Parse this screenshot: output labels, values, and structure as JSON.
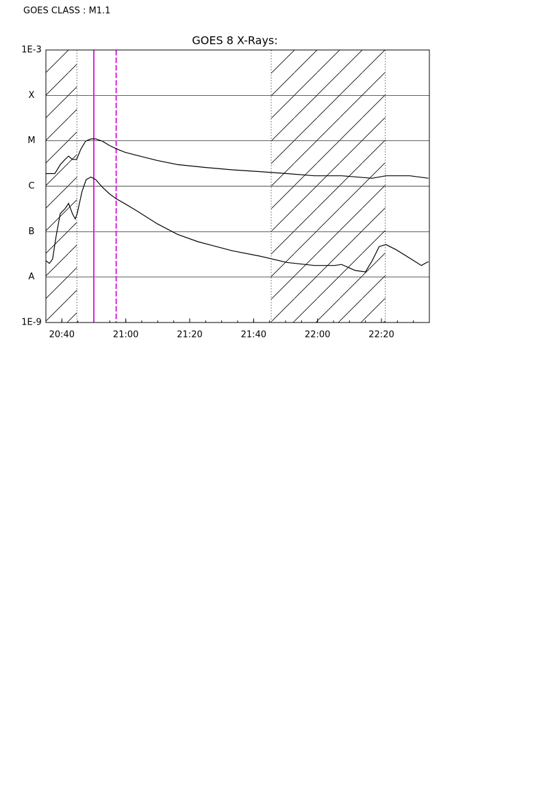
{
  "header": "GOES CLASS : M1.1",
  "chart_data": {
    "type": "line",
    "title": "GOES 8 X-Rays:",
    "log_y": true,
    "grid": true,
    "xlim": [
      1235,
      1355
    ],
    "xticks": [
      {
        "value": 1240,
        "label": "20:40"
      },
      {
        "value": 1260,
        "label": "21:00"
      },
      {
        "value": 1280,
        "label": "21:20"
      },
      {
        "value": 1300,
        "label": "21:40"
      },
      {
        "value": 1320,
        "label": "22:00"
      },
      {
        "value": 1340,
        "label": "22:20"
      }
    ],
    "ylim": [
      1e-09,
      0.001
    ],
    "yticks": [
      {
        "value": 1e-09,
        "label": "1E-9"
      },
      {
        "value": 1e-08,
        "label": "A"
      },
      {
        "value": 1e-07,
        "label": "B"
      },
      {
        "value": 1e-06,
        "label": "C"
      },
      {
        "value": 1e-05,
        "label": "M"
      },
      {
        "value": 0.0001,
        "label": "X"
      },
      {
        "value": 0.001,
        "label": "1E-3"
      }
    ],
    "hatch_regions": [
      [
        1235,
        1244.7
      ],
      [
        1305.5,
        1341.2
      ]
    ],
    "markers": [
      {
        "x": 1250,
        "color": "#e020e0",
        "style": "solid"
      },
      {
        "x": 1257,
        "color": "#e020e0",
        "style": "dashed"
      }
    ],
    "series": [
      {
        "color": "#000000",
        "x": [
          1235,
          1237.8,
          1239.5,
          1241,
          1242.1,
          1243.3,
          1244.6,
          1245.9,
          1247.4,
          1249.1,
          1250.6,
          1252.7,
          1254.9,
          1257,
          1259.8,
          1263.4,
          1269.8,
          1276.2,
          1284.8,
          1293.3,
          1301.9,
          1310.4,
          1319,
          1327.5,
          1337.1,
          1341.4,
          1348.9,
          1354.7
        ],
        "values": [
          1.9e-06,
          1.9e-06,
          3e-06,
          3.9e-06,
          4.6e-06,
          3.9e-06,
          3.9e-06,
          6.5e-06,
          9.8e-06,
          1.1e-05,
          1.1e-05,
          9.8e-06,
          7.9e-06,
          6.7e-06,
          5.6e-06,
          4.8e-06,
          3.7e-06,
          3e-06,
          2.6e-06,
          2.3e-06,
          2.1e-06,
          1.9e-06,
          1.7e-06,
          1.7e-06,
          1.5e-06,
          1.7e-06,
          1.7e-06,
          1.5e-06
        ]
      },
      {
        "color": "#000000",
        "x": [
          1235,
          1236.1,
          1237.1,
          1238.2,
          1239.5,
          1241,
          1242.1,
          1243.3,
          1244.2,
          1244.8,
          1246.3,
          1247.6,
          1249.1,
          1250.6,
          1252.7,
          1254.9,
          1257,
          1259.8,
          1263.4,
          1269.8,
          1276.2,
          1282.6,
          1286.9,
          1293.3,
          1301.9,
          1310.4,
          1319,
          1325.4,
          1327.5,
          1331.8,
          1335,
          1337.1,
          1339.3,
          1341.4,
          1344.6,
          1348.9,
          1352.5,
          1354.7
        ],
        "values": [
          2.3e-08,
          2e-08,
          2.5e-08,
          7.9e-08,
          2.5e-07,
          3.2e-07,
          4.2e-07,
          2.5e-07,
          1.9e-07,
          2.5e-07,
          7.6e-07,
          1.4e-06,
          1.6e-06,
          1.4e-06,
          9.5e-07,
          6.8e-07,
          5.3e-07,
          4.1e-07,
          2.9e-07,
          1.5e-07,
          8.7e-08,
          6e-08,
          5e-08,
          3.8e-08,
          2.9e-08,
          2.1e-08,
          1.8e-08,
          1.8e-08,
          1.9e-08,
          1.4e-08,
          1.3e-08,
          2.3e-08,
          4.7e-08,
          5.2e-08,
          4e-08,
          2.6e-08,
          1.8e-08,
          2.2e-08
        ]
      }
    ]
  }
}
